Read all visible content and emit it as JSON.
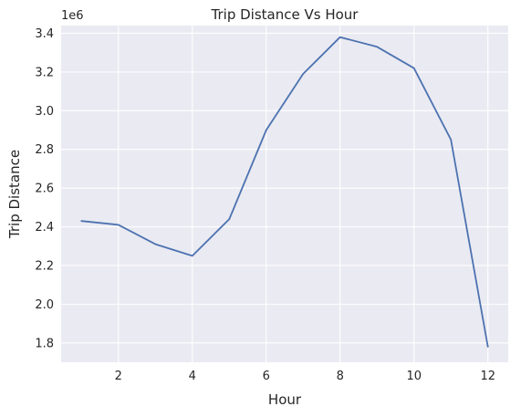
{
  "chart_data": {
    "type": "line",
    "title": "Trip Distance Vs Hour",
    "xlabel": "Hour",
    "ylabel": "Trip Distance",
    "y_offset_label": "1e6",
    "x_ticks": [
      "2",
      "4",
      "6",
      "8",
      "10",
      "12"
    ],
    "y_ticks": [
      "1.8",
      "2.0",
      "2.2",
      "2.4",
      "2.6",
      "2.8",
      "3.0",
      "3.2",
      "3.4"
    ],
    "xlim": [
      0.45,
      12.55
    ],
    "ylim": [
      1.7,
      3.44
    ],
    "y_scale_factor": 1000000,
    "grid": true,
    "series": [
      {
        "color": "#4c72b0",
        "x": [
          1,
          2,
          3,
          4,
          5,
          6,
          7,
          8,
          9,
          10,
          11,
          12
        ],
        "y": [
          2.43,
          2.41,
          2.31,
          2.25,
          2.44,
          2.9,
          3.19,
          3.38,
          3.33,
          3.22,
          2.85,
          1.78
        ]
      }
    ],
    "background_color": "#eaeaf2",
    "grid_color": "#ffffff"
  }
}
